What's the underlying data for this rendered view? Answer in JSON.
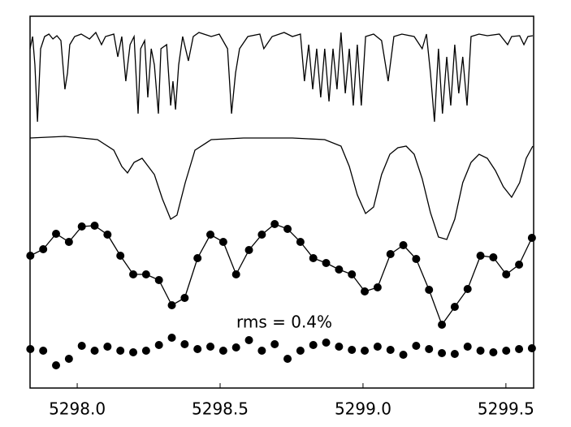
{
  "chart_data": {
    "type": "line",
    "xlim": [
      5297.835,
      5299.597
    ],
    "ylim": [
      0,
      458
    ],
    "xticks": [
      {
        "value": 5298.0,
        "label": "5298.0"
      },
      {
        "value": 5298.5,
        "label": "5298.5"
      },
      {
        "value": 5299.0,
        "label": "5299.0"
      },
      {
        "value": 5299.5,
        "label": "5299.5"
      }
    ],
    "annotation": "rms = 0.4%",
    "series": [
      {
        "color": "#000000",
        "line": true,
        "markers": false,
        "x": [
          5297.835,
          5297.844,
          5297.852,
          5297.861,
          5297.872,
          5297.886,
          5297.901,
          5297.915,
          5297.929,
          5297.943,
          5297.957,
          5297.966,
          5297.974,
          5297.991,
          5298.014,
          5298.043,
          5298.065,
          5298.085,
          5298.099,
          5298.128,
          5298.142,
          5298.156,
          5298.17,
          5298.185,
          5298.199,
          5298.213,
          5298.222,
          5298.236,
          5298.247,
          5298.259,
          5298.27,
          5298.284,
          5298.293,
          5298.313,
          5298.327,
          5298.335,
          5298.344,
          5298.355,
          5298.369,
          5298.389,
          5298.406,
          5298.426,
          5298.469,
          5298.497,
          5298.526,
          5298.54,
          5298.554,
          5298.568,
          5298.597,
          5298.639,
          5298.653,
          5298.682,
          5298.724,
          5298.753,
          5298.781,
          5298.795,
          5298.81,
          5298.824,
          5298.838,
          5298.852,
          5298.866,
          5298.881,
          5298.895,
          5298.909,
          5298.923,
          5298.938,
          5298.952,
          5298.966,
          5298.98,
          5298.994,
          5299.009,
          5299.037,
          5299.065,
          5299.088,
          5299.108,
          5299.136,
          5299.179,
          5299.207,
          5299.222,
          5299.236,
          5299.25,
          5299.264,
          5299.278,
          5299.293,
          5299.307,
          5299.321,
          5299.335,
          5299.349,
          5299.364,
          5299.378,
          5299.406,
          5299.435,
          5299.477,
          5299.506,
          5299.52,
          5299.548,
          5299.563,
          5299.577,
          5299.594
        ],
        "values": [
          418,
          433,
          398,
          328,
          418,
          433,
          436,
          430,
          434,
          428,
          368,
          388,
          423,
          433,
          436,
          430,
          438,
          423,
          433,
          436,
          408,
          433,
          378,
          423,
          433,
          338,
          418,
          428,
          358,
          418,
          398,
          338,
          418,
          423,
          348,
          378,
          343,
          398,
          433,
          403,
          433,
          438,
          433,
          436,
          418,
          338,
          388,
          418,
          433,
          436,
          418,
          433,
          438,
          433,
          436,
          378,
          423,
          368,
          418,
          358,
          418,
          353,
          418,
          368,
          438,
          363,
          418,
          348,
          423,
          348,
          433,
          436,
          428,
          378,
          433,
          436,
          433,
          418,
          436,
          388,
          328,
          418,
          338,
          408,
          348,
          423,
          363,
          408,
          348,
          433,
          436,
          434,
          436,
          423,
          433,
          434,
          423,
          433,
          434
        ]
      },
      {
        "color": "#000000",
        "line": true,
        "markers": false,
        "x": [
          5297.835,
          5297.957,
          5298.071,
          5298.128,
          5298.156,
          5298.176,
          5298.199,
          5298.227,
          5298.27,
          5298.298,
          5298.327,
          5298.349,
          5298.378,
          5298.412,
          5298.469,
          5298.582,
          5298.753,
          5298.866,
          5298.923,
          5298.952,
          5298.98,
          5299.009,
          5299.037,
          5299.065,
          5299.094,
          5299.122,
          5299.151,
          5299.179,
          5299.207,
          5299.236,
          5299.264,
          5299.293,
          5299.321,
          5299.349,
          5299.378,
          5299.406,
          5299.435,
          5299.463,
          5299.491,
          5299.52,
          5299.548,
          5299.571,
          5299.594
        ],
        "values": [
          308,
          310,
          306,
          293,
          273,
          265,
          278,
          283,
          263,
          233,
          208,
          213,
          253,
          293,
          306,
          308,
          308,
          306,
          298,
          273,
          238,
          215,
          223,
          263,
          288,
          296,
          298,
          288,
          258,
          216,
          186,
          183,
          208,
          253,
          278,
          288,
          283,
          268,
          248,
          235,
          253,
          283,
          298
        ]
      },
      {
        "color": "#000000",
        "line": true,
        "markers": true,
        "x": [
          5297.836,
          5297.881,
          5297.926,
          5297.971,
          5298.016,
          5298.061,
          5298.106,
          5298.151,
          5298.196,
          5298.241,
          5298.286,
          5298.331,
          5298.376,
          5298.421,
          5298.466,
          5298.511,
          5298.556,
          5298.601,
          5298.646,
          5298.691,
          5298.736,
          5298.781,
          5298.826,
          5298.871,
          5298.916,
          5298.961,
          5299.006,
          5299.051,
          5299.096,
          5299.141,
          5299.186,
          5299.231,
          5299.276,
          5299.321,
          5299.366,
          5299.411,
          5299.456,
          5299.501,
          5299.546,
          5299.591
        ],
        "values": [
          163,
          171,
          190,
          180,
          199,
          200,
          189,
          163,
          140,
          140,
          133,
          102,
          111,
          160,
          189,
          180,
          140,
          170,
          189,
          202,
          196,
          180,
          160,
          154,
          146,
          140,
          119,
          124,
          165,
          176,
          159,
          121,
          78,
          100,
          122,
          163,
          161,
          140,
          152,
          185
        ]
      },
      {
        "color": "#000000",
        "line": false,
        "markers": true,
        "x": [
          5297.836,
          5297.881,
          5297.926,
          5297.971,
          5298.016,
          5298.061,
          5298.106,
          5298.151,
          5298.196,
          5298.241,
          5298.286,
          5298.331,
          5298.376,
          5298.421,
          5298.466,
          5298.511,
          5298.556,
          5298.601,
          5298.646,
          5298.691,
          5298.736,
          5298.781,
          5298.826,
          5298.871,
          5298.916,
          5298.961,
          5299.006,
          5299.051,
          5299.096,
          5299.141,
          5299.186,
          5299.231,
          5299.276,
          5299.321,
          5299.366,
          5299.411,
          5299.456,
          5299.501,
          5299.546,
          5299.591
        ],
        "values": [
          48,
          46,
          28,
          36,
          52,
          46,
          51,
          46,
          44,
          46,
          53,
          62,
          54,
          48,
          51,
          46,
          50,
          59,
          46,
          54,
          36,
          46,
          53,
          56,
          51,
          47,
          46,
          51,
          47,
          41,
          52,
          48,
          43,
          42,
          51,
          46,
          44,
          46,
          48,
          49
        ]
      }
    ]
  }
}
